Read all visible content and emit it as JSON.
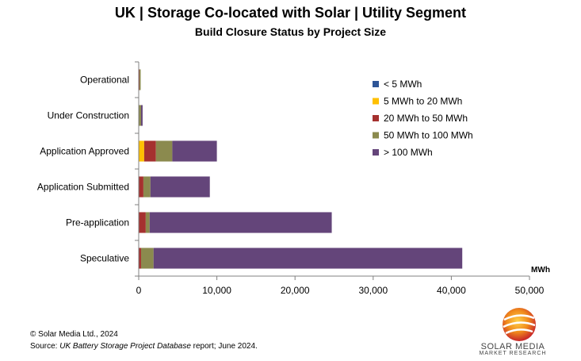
{
  "chart_data": {
    "type": "bar",
    "orientation": "horizontal",
    "stacked": true,
    "title": "UK | Storage Co-located with Solar | Utility Segment",
    "subtitle": "Build Closure Status by Project Size",
    "xlabel": "MWh",
    "xlim": [
      0,
      50000
    ],
    "xticks": [
      "0",
      "10,000",
      "20,000",
      "30,000",
      "40,000",
      "50,000"
    ],
    "xtick_values": [
      0,
      10000,
      20000,
      30000,
      40000,
      50000
    ],
    "categories": [
      "Operational",
      "Under Construction",
      "Application Approved",
      "Application Submitted",
      "Pre-application",
      "Speculative"
    ],
    "series": [
      {
        "name": "< 5 MWh",
        "color": "#2e5597",
        "values": [
          0,
          0,
          0,
          0,
          0,
          0
        ]
      },
      {
        "name": "5 MWh to 20 MWh",
        "color": "#ffc000",
        "values": [
          50,
          0,
          700,
          0,
          0,
          0
        ]
      },
      {
        "name": "20 MWh to 50 MWh",
        "color": "#a5312f",
        "values": [
          50,
          0,
          1500,
          600,
          900,
          300
        ]
      },
      {
        "name": "50 MWh to 100 MWh",
        "color": "#8b8a4e",
        "values": [
          150,
          300,
          2100,
          900,
          500,
          1600
        ]
      },
      {
        "name": "> 100 MWh",
        "color": "#64457a",
        "values": [
          0,
          200,
          5700,
          7600,
          23300,
          39500
        ]
      }
    ],
    "grid": false,
    "legend_position": "right"
  },
  "footer": {
    "copyright": "© Solar Media Ltd., 2024",
    "source_prefix": "Source: ",
    "source_italic": "UK Battery Storage Project Database",
    "source_suffix": " report; June 2024."
  },
  "logo": {
    "line1": "SOLAR MEDIA",
    "line2": "MARKET RESEARCH"
  }
}
